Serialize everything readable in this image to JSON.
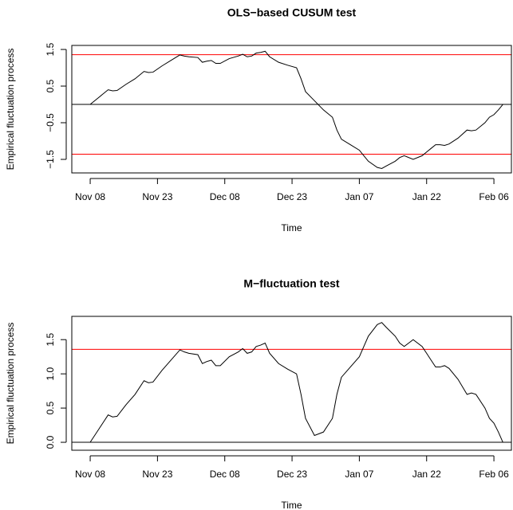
{
  "chart_data": [
    {
      "type": "line",
      "title": "OLS−based CUSUM test",
      "xlabel": "Time",
      "ylabel": "Empirical fluctuation process",
      "x": [
        0,
        2,
        4,
        5,
        6,
        8,
        10,
        12,
        13,
        14,
        16,
        18,
        20,
        21,
        22,
        24,
        25,
        26,
        27,
        28,
        29,
        31,
        33,
        34,
        35,
        36,
        37,
        38,
        39,
        40,
        42,
        44,
        46,
        47,
        48,
        50,
        52,
        54,
        55,
        56,
        58,
        60,
        61,
        62,
        64,
        65,
        66,
        68,
        69,
        70,
        72,
        74,
        75,
        76,
        77,
        78,
        79,
        80,
        82,
        84,
        85,
        86,
        88,
        89,
        90,
        91,
        92
      ],
      "values": [
        0,
        0.2,
        0.4,
        0.37,
        0.38,
        0.55,
        0.7,
        0.9,
        0.87,
        0.88,
        1.05,
        1.2,
        1.35,
        1.32,
        1.3,
        1.28,
        1.15,
        1.18,
        1.2,
        1.12,
        1.12,
        1.25,
        1.32,
        1.37,
        1.3,
        1.32,
        1.4,
        1.42,
        1.45,
        1.3,
        1.15,
        1.07,
        1.0,
        0.7,
        0.35,
        0.1,
        -0.15,
        -0.35,
        -0.7,
        -0.95,
        -1.1,
        -1.25,
        -1.4,
        -1.55,
        -1.72,
        -1.75,
        -1.68,
        -1.55,
        -1.45,
        -1.4,
        -1.5,
        -1.4,
        -1.3,
        -1.2,
        -1.1,
        -1.1,
        -1.12,
        -1.08,
        -0.92,
        -0.7,
        -0.72,
        -0.7,
        -0.5,
        -0.35,
        -0.28,
        -0.15,
        0.0
      ],
      "color": "#000000",
      "xlim": [
        -4.1,
        93.9
      ],
      "xticks": [
        {
          "value": 0,
          "label": "Nov 08"
        },
        {
          "value": 15,
          "label": "Nov 23"
        },
        {
          "value": 30,
          "label": "Dec 08"
        },
        {
          "value": 45,
          "label": "Dec 23"
        },
        {
          "value": 60,
          "label": "Jan 07"
        },
        {
          "value": 75,
          "label": "Jan 22"
        },
        {
          "value": 90,
          "label": "Feb 06"
        }
      ],
      "ylim": [
        -1.87,
        1.61
      ],
      "yticks": [
        {
          "value": -1.5,
          "label": "−1.5"
        },
        {
          "value": -0.5,
          "label": "−0.5"
        },
        0.5,
        1.5
      ],
      "hlines": [
        {
          "value": 1.358,
          "color": "#ff0000"
        },
        {
          "value": -1.358,
          "color": "#ff0000"
        },
        {
          "value": 0,
          "color": "#000000"
        }
      ]
    },
    {
      "type": "line",
      "title": "M−fluctuation test",
      "xlabel": "Time",
      "ylabel": "Empirical fluctuation process",
      "x": [
        0,
        2,
        4,
        5,
        6,
        8,
        10,
        12,
        13,
        14,
        16,
        18,
        20,
        21,
        22,
        24,
        25,
        26,
        27,
        28,
        29,
        31,
        33,
        34,
        35,
        36,
        37,
        38,
        39,
        40,
        42,
        44,
        46,
        47,
        48,
        50,
        52,
        54,
        55,
        56,
        58,
        60,
        61,
        62,
        64,
        65,
        66,
        68,
        69,
        70,
        72,
        74,
        75,
        76,
        77,
        78,
        79,
        80,
        82,
        84,
        85,
        86,
        88,
        89,
        90,
        91,
        92
      ],
      "values": [
        0,
        0.2,
        0.4,
        0.37,
        0.38,
        0.55,
        0.7,
        0.9,
        0.87,
        0.88,
        1.05,
        1.2,
        1.35,
        1.32,
        1.3,
        1.28,
        1.15,
        1.18,
        1.2,
        1.12,
        1.12,
        1.25,
        1.32,
        1.37,
        1.3,
        1.32,
        1.4,
        1.42,
        1.45,
        1.3,
        1.15,
        1.07,
        1.0,
        0.7,
        0.35,
        0.1,
        0.15,
        0.35,
        0.7,
        0.95,
        1.1,
        1.25,
        1.4,
        1.55,
        1.72,
        1.75,
        1.68,
        1.55,
        1.45,
        1.4,
        1.5,
        1.4,
        1.3,
        1.2,
        1.1,
        1.1,
        1.12,
        1.08,
        0.92,
        0.7,
        0.72,
        0.7,
        0.5,
        0.35,
        0.28,
        0.15,
        0.0
      ],
      "color": "#000000",
      "xlim": [
        -4.1,
        93.9
      ],
      "xticks": [
        {
          "value": 0,
          "label": "Nov 08"
        },
        {
          "value": 15,
          "label": "Nov 23"
        },
        {
          "value": 30,
          "label": "Dec 08"
        },
        {
          "value": 45,
          "label": "Dec 23"
        },
        {
          "value": 60,
          "label": "Jan 07"
        },
        {
          "value": 75,
          "label": "Jan 22"
        },
        {
          "value": 90,
          "label": "Feb 06"
        }
      ],
      "ylim": [
        -0.116,
        1.84
      ],
      "yticks": [
        {
          "value": 0,
          "label": "0.0"
        },
        0.5,
        {
          "value": 1,
          "label": "1.0"
        },
        1.5
      ],
      "hlines": [
        {
          "value": 1.358,
          "color": "#ff0000"
        },
        {
          "value": 0,
          "color": "#000000"
        }
      ]
    }
  ]
}
